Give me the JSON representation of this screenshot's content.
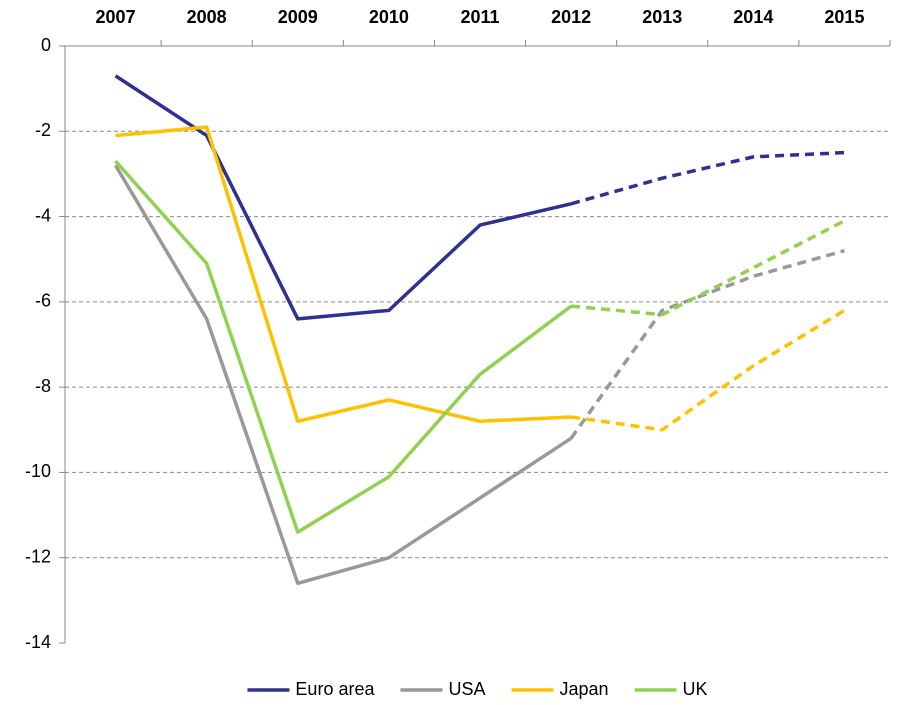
{
  "chart_data": {
    "type": "line",
    "categories": [
      "2007",
      "2008",
      "2009",
      "2010",
      "2011",
      "2012",
      "2013",
      "2014",
      "2015"
    ],
    "series": [
      {
        "name": "Euro area",
        "color": "#2e3192",
        "values": [
          -0.7,
          -2.1,
          -6.4,
          -6.2,
          -4.2,
          -3.7,
          -3.1,
          -2.6,
          -2.5
        ]
      },
      {
        "name": "USA",
        "color": "#999999",
        "values": [
          -2.8,
          -6.4,
          -12.6,
          -12.0,
          -10.6,
          -9.2,
          -6.2,
          -5.4,
          -4.8
        ]
      },
      {
        "name": "Japan",
        "color": "#ffc000",
        "values": [
          -2.1,
          -1.9,
          -8.8,
          -8.3,
          -8.8,
          -8.7,
          -9.0,
          -7.5,
          -6.2
        ]
      },
      {
        "name": "UK",
        "color": "#92d050",
        "values": [
          -2.7,
          -5.1,
          -11.4,
          -10.1,
          -7.7,
          -6.1,
          -6.3,
          -5.2,
          -4.1
        ]
      }
    ],
    "ylim": [
      -14,
      0
    ],
    "yticks": [
      0,
      -2,
      -4,
      -6,
      -8,
      -10,
      -12,
      -14
    ],
    "grid": true,
    "dashed_from": "2012",
    "legend": "bottom"
  }
}
